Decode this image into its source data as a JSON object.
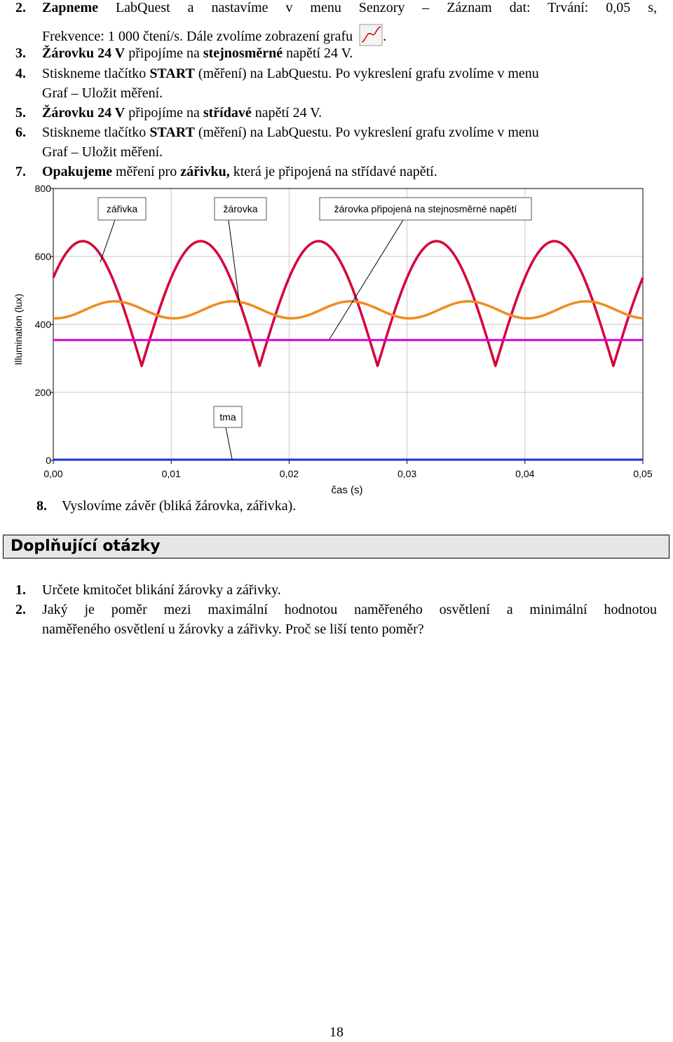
{
  "steps": [
    {
      "num": "2.",
      "bold": "Zapneme",
      "text": " LabQuest a nastavíme v menu Senzory – Záznam dat: Trvání: 0,05 s,",
      "cont": "Frekvence: 1 000 čtení/s. Dále zvolíme zobrazení grafu",
      "cont_end": "."
    },
    {
      "num": "3.",
      "bold": "Žárovku 24 V",
      "mid": " připojíme na ",
      "bold2": "stejnosměrné",
      "text": " napětí 24 V."
    },
    {
      "num": "4.",
      "text": "Stiskneme tlačítko ",
      "bold": "START",
      "text2": " (měření) na LabQuestu. Po vykreslení grafu zvolíme v menu",
      "cont": "Graf – Uložit měření."
    },
    {
      "num": "5.",
      "bold": "Žárovku 24 V",
      "mid": " připojíme na ",
      "bold2": "střídavé",
      "text": " napětí 24 V."
    },
    {
      "num": "6.",
      "text": "Stiskneme tlačítko ",
      "bold": "START",
      "text2": " (měření) na LabQuestu. Po vykreslení grafu zvolíme v menu",
      "cont": "Graf – Uložit měření."
    },
    {
      "num": "7.",
      "bold": "Opakujeme",
      "mid": " měření pro ",
      "bold2": "zářivku,",
      "text": " která je připojená na střídavé napětí."
    }
  ],
  "step8": {
    "num": "8.",
    "text": "Vyslovíme závěr (bliká žárovka, zářivka)."
  },
  "section_title": "Doplňující otázky",
  "questions": [
    {
      "num": "1.",
      "text": "Určete kmitočet blikání žárovky a zářivky."
    },
    {
      "num": "2.",
      "text": "Jaký je poměr mezi maximální hodnotou naměřeného osvětlení a minimální hodnotou",
      "cont": "naměřeného osvětlení u žárovky a zářivky. Proč se liší tento poměr?"
    }
  ],
  "page_number": "18",
  "icons": {
    "graph": "graph-line-icon"
  },
  "chart_data": {
    "type": "line",
    "xlabel": "čas (s)",
    "ylabel": "Illumination (lux)",
    "xlim": [
      0,
      0.05
    ],
    "ylim": [
      0,
      800
    ],
    "xticks": [
      "0,00",
      "0,01",
      "0,02",
      "0,03",
      "0,04",
      "0,05"
    ],
    "xtick_values": [
      0,
      0.01,
      0.02,
      0.03,
      0.04,
      0.05
    ],
    "yticks": [
      "0",
      "200",
      "400",
      "600",
      "800"
    ],
    "ytick_values": [
      0,
      200,
      400,
      600,
      800
    ],
    "series": [
      {
        "name": "žárovka",
        "color": "#d6003a",
        "shape": "rectified-sine",
        "period": 0.01,
        "first_peak": 0.0025,
        "min": 278,
        "max": 645
      },
      {
        "name": "zářivka",
        "color": "#f08c1e",
        "shape": "sine",
        "period": 0.01,
        "first_peak": 0.0052,
        "min": 418,
        "max": 468
      },
      {
        "name": "žárovka připojená na stejnosměrné napětí",
        "color": "#d600d6",
        "shape": "flat",
        "value": 354
      },
      {
        "name": "tma",
        "color": "#1432d2",
        "shape": "flat",
        "value": 2
      }
    ],
    "annotations": [
      {
        "label": "zářivka",
        "series": "zářivka"
      },
      {
        "label": "žárovka",
        "series": "žárovka"
      },
      {
        "label": "žárovka připojená na stejnosměrné napětí",
        "series": "žárovka připojená na stejnosměrné napětí"
      },
      {
        "label": "tma",
        "series": "tma"
      }
    ]
  }
}
